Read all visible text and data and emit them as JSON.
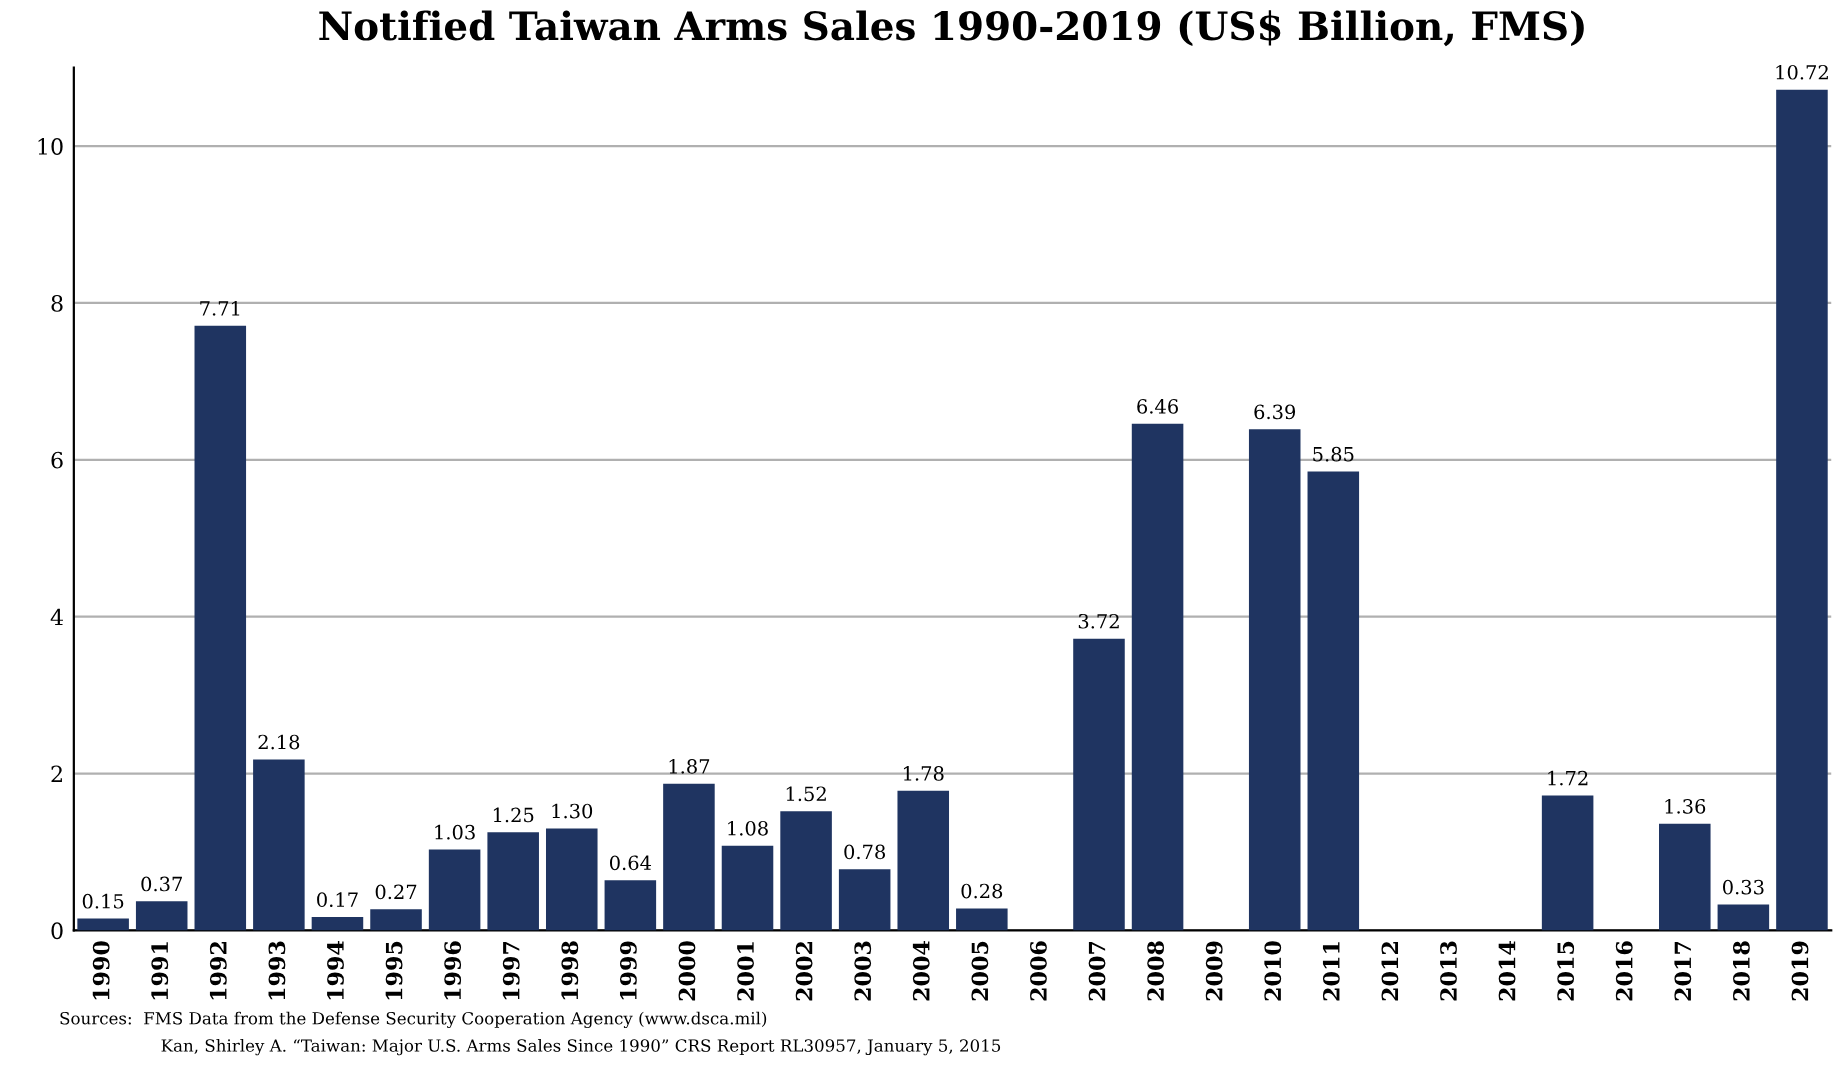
{
  "chart_data": {
    "type": "bar",
    "title": "Notified Taiwan Arms Sales 1990-2019 (US$ Billion, FMS)",
    "categories": [
      "1990",
      "1991",
      "1992",
      "1993",
      "1994",
      "1995",
      "1996",
      "1997",
      "1998",
      "1999",
      "2000",
      "2001",
      "2002",
      "2003",
      "2004",
      "2005",
      "2006",
      "2007",
      "2008",
      "2009",
      "2010",
      "2011",
      "2012",
      "2013",
      "2014",
      "2015",
      "2016",
      "2017",
      "2018",
      "2019"
    ],
    "values": [
      0.15,
      0.37,
      7.71,
      2.18,
      0.17,
      0.27,
      1.03,
      1.25,
      1.3,
      0.64,
      1.87,
      1.08,
      1.52,
      0.78,
      1.78,
      0.28,
      null,
      3.72,
      6.46,
      null,
      6.39,
      5.85,
      null,
      null,
      null,
      1.72,
      null,
      1.36,
      0.33,
      10.72
    ],
    "value_labels": [
      "0.15",
      "0.37",
      "7.71",
      "2.18",
      "0.17",
      "0.27",
      "1.03",
      "1.25",
      "1.30",
      "0.64",
      "1.87",
      "1.08",
      "1.52",
      "0.78",
      "1.78",
      "0.28",
      null,
      "3.72",
      "6.46",
      null,
      "6.39",
      "5.85",
      null,
      null,
      null,
      "1.72",
      null,
      "1.36",
      "0.33",
      "10.72"
    ],
    "color": "#1f3461",
    "ylim": [
      0,
      11
    ],
    "yticks": [
      0,
      2,
      4,
      6,
      8,
      10
    ],
    "grid": "y",
    "annotations": [
      "Sources:  FMS Data from the Defense Security Cooperation Agency (www.dsca.mil)",
      "Kan, Shirley A. “Taiwan: Major U.S. Arms Sales Since 1990” CRS Report RL30957, January 5, 2015"
    ]
  }
}
